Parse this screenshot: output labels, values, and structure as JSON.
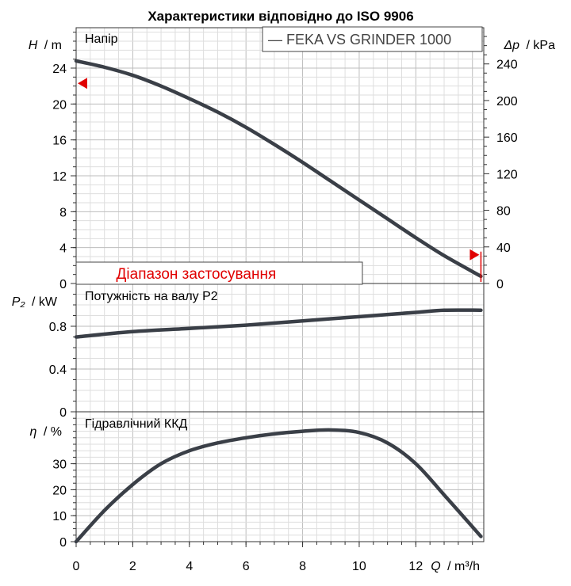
{
  "chart_data": {
    "type": "line",
    "title": "Характеристики відповідно до ISO 9906",
    "legend": {
      "entry": "— FEKA VS GRINDER 1000",
      "placement": "top-right"
    },
    "x_axis": {
      "label_symbol": "Q",
      "label_unit": "/ m³/h",
      "range": [
        0,
        14.4
      ],
      "ticks": [
        "0",
        "2",
        "4",
        "6",
        "8",
        "10",
        "12"
      ]
    },
    "panels": [
      {
        "name": "head",
        "title": "Напір",
        "ylabel_symbol": "H",
        "ylabel_unit": "/ m",
        "ylim": [
          0,
          28.5
        ],
        "yticks": [
          0,
          4,
          8,
          12,
          16,
          20,
          24
        ],
        "y2label_symbol": "Δp",
        "y2label_unit": "/ kPa",
        "y2ticks": [
          0,
          40,
          80,
          120,
          160,
          200,
          240
        ],
        "series": [
          {
            "name": "FEKA VS GRINDER 1000",
            "x": [
              0,
              1,
              2,
              3,
              4,
              5,
              6,
              7,
              8,
              9,
              10,
              11,
              12,
              13,
              14.3
            ],
            "y": [
              24.8,
              24.1,
              23.2,
              22.0,
              20.6,
              19.1,
              17.4,
              15.5,
              13.5,
              11.4,
              9.3,
              7.2,
              5.1,
              3.1,
              0.8
            ]
          }
        ],
        "application_range": {
          "label": "Діапазон застосування",
          "x_from": 0.8,
          "x_to": 10.0
        },
        "markers": [
          {
            "x": 0,
            "y": 22.3
          },
          {
            "x": 14.3,
            "y": 3.2
          }
        ]
      },
      {
        "name": "power",
        "title": "Потужність на валу P2",
        "ylabel_symbol": "P₂",
        "ylabel_unit": "/ kW",
        "ylim": [
          0,
          1.2
        ],
        "yticks": [
          0,
          0.4,
          0.8
        ],
        "ytick_labels": [
          "0",
          "0.4",
          "0.8"
        ],
        "series": [
          {
            "name": "FEKA VS GRINDER 1000",
            "x": [
              0,
              2,
              4,
              6,
              8,
              10,
              12,
              13,
              14.3
            ],
            "y": [
              0.7,
              0.75,
              0.78,
              0.81,
              0.85,
              0.89,
              0.93,
              0.95,
              0.95
            ]
          }
        ]
      },
      {
        "name": "efficiency",
        "title": "Гідравлічний ККД",
        "ylabel_symbol": "η",
        "ylabel_unit": "/ %",
        "ylim": [
          0,
          50
        ],
        "yticks": [
          0,
          10,
          20,
          30
        ],
        "series": [
          {
            "name": "FEKA VS GRINDER 1000",
            "x": [
              0,
              1,
              2,
              3,
              4,
              5,
              6,
              7,
              8,
              9,
              10,
              11,
              12,
              13,
              14.3
            ],
            "y": [
              0,
              12,
              22,
              30,
              35,
              38,
              40,
              41.5,
              42.5,
              43,
              42,
              38,
              30,
              18,
              2
            ]
          }
        ]
      }
    ]
  }
}
